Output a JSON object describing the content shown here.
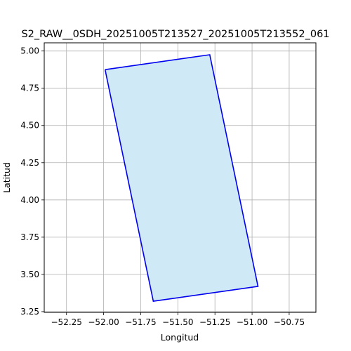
{
  "chart_data": {
    "type": "area",
    "title": "S2_RAW__0SDH_20251005T213527_20251005T213552_061",
    "xlabel": "Longitud",
    "ylabel": "Latitud",
    "xlim": [
      -52.4,
      -50.57
    ],
    "ylim": [
      3.245,
      5.055
    ],
    "xticks": [
      -52.25,
      -52.0,
      -51.75,
      -51.5,
      -51.25,
      -51.0,
      -50.75
    ],
    "xtick_labels": [
      "−52.25",
      "−52.00",
      "−51.75",
      "−51.50",
      "−51.25",
      "−51.00",
      "−50.75"
    ],
    "yticks": [
      3.25,
      3.5,
      3.75,
      4.0,
      4.25,
      4.5,
      4.75,
      5.0
    ],
    "ytick_labels": [
      "3.25",
      "3.50",
      "3.75",
      "4.00",
      "4.25",
      "4.50",
      "4.75",
      "5.00"
    ],
    "grid": true,
    "polygon": {
      "x": [
        -51.99,
        -51.285,
        -50.96,
        -51.665,
        -51.99
      ],
      "y": [
        4.875,
        4.975,
        3.42,
        3.32,
        4.875
      ],
      "fill_color": "#cfe9f6",
      "edge_color": "#0000ee"
    }
  }
}
